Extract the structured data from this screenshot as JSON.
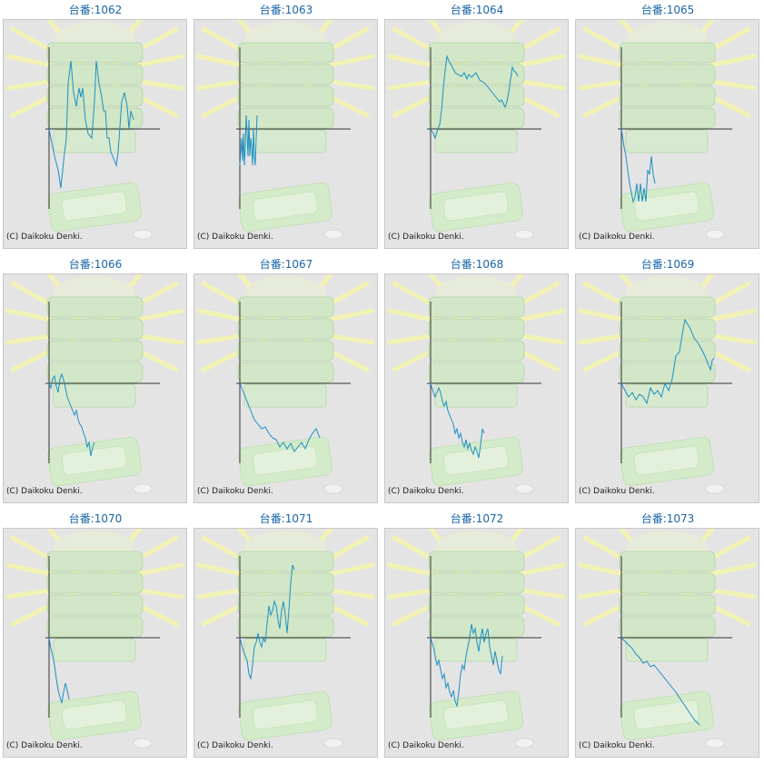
{
  "copyright": "(C) Daikoku Denki.",
  "colors": {
    "line": "#1e8fc4",
    "axis": "#333333",
    "title": "#1a66a8",
    "panel_bg": "#e4e4e4"
  },
  "machines": [
    {
      "label": "台番:1062",
      "points": [
        [
          0,
          0
        ],
        [
          6,
          -30
        ],
        [
          10,
          -45
        ],
        [
          13,
          -65
        ],
        [
          16,
          -35
        ],
        [
          19,
          -10
        ],
        [
          21,
          50
        ],
        [
          24,
          75
        ],
        [
          27,
          40
        ],
        [
          30,
          25
        ],
        [
          33,
          45
        ],
        [
          35,
          35
        ],
        [
          37,
          45
        ],
        [
          40,
          10
        ],
        [
          43,
          -5
        ],
        [
          47,
          -10
        ],
        [
          50,
          30
        ],
        [
          52,
          75
        ],
        [
          55,
          50
        ],
        [
          58,
          35
        ],
        [
          60,
          20
        ],
        [
          62,
          20
        ],
        [
          64,
          -10
        ],
        [
          66,
          -10
        ],
        [
          68,
          -25
        ],
        [
          72,
          -35
        ],
        [
          74,
          -40
        ],
        [
          76,
          -25
        ],
        [
          80,
          30
        ],
        [
          83,
          40
        ],
        [
          86,
          25
        ],
        [
          88,
          0
        ],
        [
          90,
          20
        ],
        [
          93,
          10
        ]
      ]
    },
    {
      "label": "台番:1063",
      "points": [
        [
          0,
          -40
        ],
        [
          2,
          -10
        ],
        [
          3,
          -35
        ],
        [
          4,
          -5
        ],
        [
          5,
          -40
        ],
        [
          6,
          -20
        ],
        [
          7,
          15
        ],
        [
          8,
          -5
        ],
        [
          9,
          -30
        ],
        [
          10,
          10
        ],
        [
          11,
          -30
        ],
        [
          12,
          -10
        ],
        [
          13,
          -20
        ],
        [
          14,
          -40
        ],
        [
          15,
          0
        ],
        [
          16,
          -30
        ],
        [
          17,
          -40
        ],
        [
          18,
          -10
        ],
        [
          19,
          15
        ]
      ]
    },
    {
      "label": "台番:1064",
      "points": [
        [
          0,
          0
        ],
        [
          3,
          -5
        ],
        [
          5,
          -10
        ],
        [
          8,
          0
        ],
        [
          10,
          5
        ],
        [
          12,
          20
        ],
        [
          14,
          45
        ],
        [
          16,
          65
        ],
        [
          18,
          80
        ],
        [
          20,
          75
        ],
        [
          23,
          70
        ],
        [
          27,
          62
        ],
        [
          30,
          60
        ],
        [
          34,
          58
        ],
        [
          37,
          62
        ],
        [
          40,
          55
        ],
        [
          42,
          60
        ],
        [
          45,
          57
        ],
        [
          50,
          62
        ],
        [
          54,
          54
        ],
        [
          57,
          52
        ],
        [
          60,
          50
        ],
        [
          64,
          45
        ],
        [
          68,
          40
        ],
        [
          72,
          35
        ],
        [
          76,
          30
        ],
        [
          78,
          32
        ],
        [
          80,
          28
        ],
        [
          82,
          24
        ],
        [
          84,
          30
        ],
        [
          86,
          40
        ],
        [
          88,
          55
        ],
        [
          90,
          68
        ],
        [
          92,
          64
        ],
        [
          94,
          62
        ],
        [
          96,
          58
        ]
      ]
    },
    {
      "label": "台番:1065",
      "points": [
        [
          0,
          0
        ],
        [
          3,
          -20
        ],
        [
          5,
          -30
        ],
        [
          7,
          -45
        ],
        [
          9,
          -60
        ],
        [
          11,
          -70
        ],
        [
          13,
          -80
        ],
        [
          15,
          -75
        ],
        [
          17,
          -60
        ],
        [
          19,
          -80
        ],
        [
          21,
          -60
        ],
        [
          23,
          -80
        ],
        [
          25,
          -65
        ],
        [
          27,
          -80
        ],
        [
          29,
          -45
        ],
        [
          31,
          -50
        ],
        [
          33,
          -30
        ],
        [
          35,
          -50
        ],
        [
          37,
          -60
        ]
      ]
    },
    {
      "label": "台番:1066",
      "points": [
        [
          0,
          0
        ],
        [
          2,
          -5
        ],
        [
          4,
          5
        ],
        [
          6,
          8
        ],
        [
          8,
          -3
        ],
        [
          10,
          -10
        ],
        [
          12,
          5
        ],
        [
          14,
          10
        ],
        [
          16,
          4
        ],
        [
          18,
          -5
        ],
        [
          20,
          -15
        ],
        [
          22,
          -20
        ],
        [
          24,
          -25
        ],
        [
          26,
          -30
        ],
        [
          28,
          -35
        ],
        [
          30,
          -30
        ],
        [
          32,
          -40
        ],
        [
          34,
          -45
        ],
        [
          36,
          -48
        ],
        [
          38,
          -55
        ],
        [
          40,
          -60
        ],
        [
          42,
          -70
        ],
        [
          44,
          -65
        ],
        [
          46,
          -80
        ],
        [
          48,
          -70
        ],
        [
          50,
          -65
        ]
      ]
    },
    {
      "label": "台番:1067",
      "points": [
        [
          0,
          0
        ],
        [
          4,
          -10
        ],
        [
          8,
          -20
        ],
        [
          12,
          -30
        ],
        [
          16,
          -40
        ],
        [
          20,
          -45
        ],
        [
          24,
          -50
        ],
        [
          28,
          -48
        ],
        [
          32,
          -55
        ],
        [
          36,
          -60
        ],
        [
          40,
          -62
        ],
        [
          44,
          -70
        ],
        [
          48,
          -65
        ],
        [
          52,
          -72
        ],
        [
          56,
          -66
        ],
        [
          60,
          -75
        ],
        [
          64,
          -70
        ],
        [
          68,
          -65
        ],
        [
          72,
          -72
        ],
        [
          76,
          -62
        ],
        [
          80,
          -55
        ],
        [
          84,
          -50
        ],
        [
          88,
          -60
        ]
      ]
    },
    {
      "label": "台番:1068",
      "points": [
        [
          0,
          0
        ],
        [
          3,
          -10
        ],
        [
          5,
          -15
        ],
        [
          7,
          -10
        ],
        [
          9,
          -5
        ],
        [
          11,
          -10
        ],
        [
          13,
          -20
        ],
        [
          15,
          -25
        ],
        [
          17,
          -20
        ],
        [
          19,
          -30
        ],
        [
          21,
          -35
        ],
        [
          23,
          -40
        ],
        [
          25,
          -45
        ],
        [
          27,
          -55
        ],
        [
          29,
          -50
        ],
        [
          31,
          -60
        ],
        [
          33,
          -55
        ],
        [
          35,
          -65
        ],
        [
          37,
          -70
        ],
        [
          39,
          -62
        ],
        [
          41,
          -72
        ],
        [
          43,
          -66
        ],
        [
          45,
          -74
        ],
        [
          47,
          -78
        ],
        [
          49,
          -70
        ],
        [
          51,
          -75
        ],
        [
          53,
          -82
        ],
        [
          55,
          -68
        ],
        [
          57,
          -50
        ],
        [
          59,
          -55
        ]
      ]
    },
    {
      "label": "台番:1069",
      "points": [
        [
          0,
          0
        ],
        [
          4,
          -8
        ],
        [
          8,
          -15
        ],
        [
          12,
          -10
        ],
        [
          16,
          -18
        ],
        [
          20,
          -12
        ],
        [
          24,
          -15
        ],
        [
          28,
          -22
        ],
        [
          32,
          -5
        ],
        [
          36,
          -12
        ],
        [
          40,
          -8
        ],
        [
          44,
          -15
        ],
        [
          48,
          0
        ],
        [
          52,
          -8
        ],
        [
          56,
          5
        ],
        [
          60,
          30
        ],
        [
          64,
          35
        ],
        [
          68,
          60
        ],
        [
          70,
          70
        ],
        [
          73,
          65
        ],
        [
          76,
          60
        ],
        [
          80,
          50
        ],
        [
          84,
          45
        ],
        [
          88,
          38
        ],
        [
          92,
          30
        ],
        [
          96,
          20
        ],
        [
          98,
          15
        ],
        [
          100,
          25
        ],
        [
          102,
          28
        ]
      ]
    },
    {
      "label": "台番:1070",
      "points": [
        [
          0,
          0
        ],
        [
          2,
          -12
        ],
        [
          4,
          -20
        ],
        [
          6,
          -30
        ],
        [
          8,
          -45
        ],
        [
          10,
          -58
        ],
        [
          12,
          -65
        ],
        [
          14,
          -72
        ],
        [
          16,
          -60
        ],
        [
          18,
          -50
        ],
        [
          20,
          -58
        ],
        [
          22,
          -68
        ]
      ]
    },
    {
      "label": "台番:1071",
      "points": [
        [
          0,
          0
        ],
        [
          4,
          -15
        ],
        [
          8,
          -25
        ],
        [
          10,
          -40
        ],
        [
          12,
          -45
        ],
        [
          14,
          -30
        ],
        [
          16,
          -10
        ],
        [
          18,
          -5
        ],
        [
          20,
          5
        ],
        [
          22,
          -5
        ],
        [
          24,
          -10
        ],
        [
          26,
          0
        ],
        [
          28,
          -5
        ],
        [
          30,
          15
        ],
        [
          32,
          35
        ],
        [
          34,
          25
        ],
        [
          36,
          30
        ],
        [
          38,
          40
        ],
        [
          40,
          35
        ],
        [
          42,
          20
        ],
        [
          44,
          10
        ],
        [
          46,
          30
        ],
        [
          48,
          40
        ],
        [
          50,
          25
        ],
        [
          52,
          5
        ],
        [
          54,
          30
        ],
        [
          56,
          60
        ],
        [
          58,
          80
        ],
        [
          60,
          75
        ]
      ]
    },
    {
      "label": "台番:1072",
      "points": [
        [
          0,
          0
        ],
        [
          3,
          -10
        ],
        [
          5,
          -20
        ],
        [
          7,
          -30
        ],
        [
          9,
          -25
        ],
        [
          11,
          -35
        ],
        [
          13,
          -45
        ],
        [
          15,
          -40
        ],
        [
          17,
          -55
        ],
        [
          19,
          -50
        ],
        [
          21,
          -60
        ],
        [
          23,
          -65
        ],
        [
          25,
          -58
        ],
        [
          27,
          -70
        ],
        [
          29,
          -75
        ],
        [
          31,
          -60
        ],
        [
          33,
          -40
        ],
        [
          35,
          -30
        ],
        [
          37,
          -35
        ],
        [
          39,
          -20
        ],
        [
          41,
          -10
        ],
        [
          43,
          0
        ],
        [
          45,
          15
        ],
        [
          47,
          5
        ],
        [
          49,
          10
        ],
        [
          51,
          -5
        ],
        [
          53,
          -15
        ],
        [
          55,
          0
        ],
        [
          57,
          10
        ],
        [
          59,
          -5
        ],
        [
          61,
          5
        ],
        [
          63,
          10
        ],
        [
          65,
          -10
        ],
        [
          67,
          -20
        ],
        [
          69,
          -30
        ],
        [
          71,
          -15
        ],
        [
          73,
          -25
        ],
        [
          75,
          -35
        ],
        [
          77,
          -40
        ],
        [
          79,
          -20
        ]
      ]
    },
    {
      "label": "台番:1073",
      "points": [
        [
          0,
          0
        ],
        [
          4,
          -4
        ],
        [
          8,
          -8
        ],
        [
          12,
          -12
        ],
        [
          16,
          -18
        ],
        [
          20,
          -22
        ],
        [
          24,
          -28
        ],
        [
          28,
          -26
        ],
        [
          32,
          -32
        ],
        [
          36,
          -30
        ],
        [
          40,
          -35
        ],
        [
          44,
          -40
        ],
        [
          48,
          -45
        ],
        [
          52,
          -50
        ],
        [
          56,
          -55
        ],
        [
          60,
          -60
        ],
        [
          64,
          -66
        ],
        [
          68,
          -72
        ],
        [
          72,
          -78
        ],
        [
          76,
          -84
        ],
        [
          80,
          -90
        ],
        [
          84,
          -94
        ],
        [
          86,
          -96
        ]
      ]
    }
  ]
}
